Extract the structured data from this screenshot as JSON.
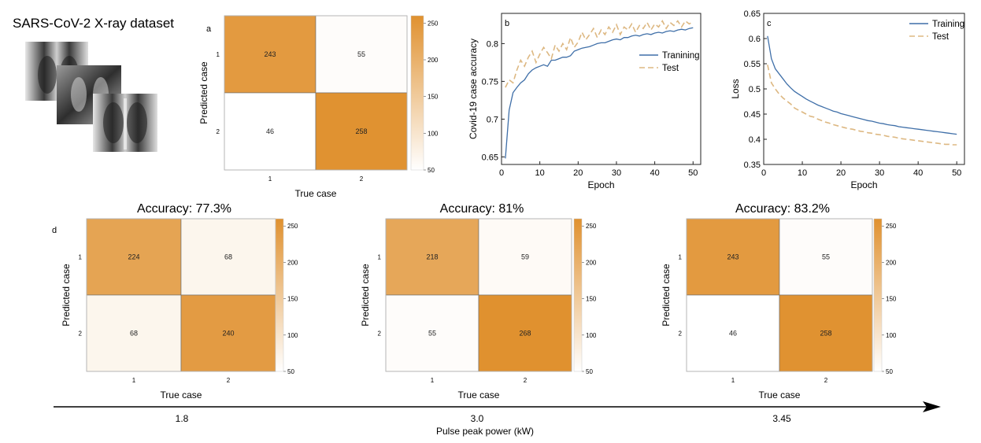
{
  "dataset_title": "SARS-CoV-2 X-ray dataset",
  "colors": {
    "high": "#e0912f",
    "low": "#ffffff",
    "training": "#3f6fa8",
    "test": "#ddb882",
    "border": "#555555"
  },
  "chart_data": [
    {
      "id": "a",
      "type": "heatmap",
      "panel_label": "a",
      "title": "",
      "row_labels": [
        "1",
        "2"
      ],
      "col_labels": [
        "1",
        "2"
      ],
      "values": [
        [
          243,
          55
        ],
        [
          46,
          258
        ]
      ],
      "xlabel": "True case",
      "ylabel": "Predicted case",
      "colorbar_range": [
        50,
        260
      ],
      "colorbar_ticks": [
        50,
        100,
        150,
        200,
        250
      ]
    },
    {
      "id": "b",
      "type": "line",
      "panel_label": "b",
      "xlabel": "Epoch",
      "ylabel": "Covid-19 case accuracy",
      "xlim": [
        0,
        52
      ],
      "ylim": [
        0.64,
        0.84
      ],
      "xticks": [
        0,
        10,
        20,
        30,
        40,
        50
      ],
      "yticks": [
        0.65,
        0.7,
        0.75,
        0.8
      ],
      "legend_position": "middle-right",
      "series": [
        {
          "name": "Tranining",
          "style": "solid",
          "x": [
            1,
            2,
            3,
            4,
            5,
            6,
            7,
            8,
            9,
            10,
            11,
            12,
            13,
            14,
            15,
            16,
            17,
            18,
            19,
            20,
            21,
            22,
            23,
            24,
            25,
            26,
            27,
            28,
            29,
            30,
            31,
            32,
            33,
            34,
            35,
            36,
            37,
            38,
            39,
            40,
            41,
            42,
            43,
            44,
            45,
            46,
            47,
            48,
            49,
            50
          ],
          "y": [
            0.648,
            0.712,
            0.735,
            0.742,
            0.748,
            0.752,
            0.76,
            0.765,
            0.768,
            0.77,
            0.772,
            0.77,
            0.778,
            0.778,
            0.78,
            0.782,
            0.782,
            0.784,
            0.79,
            0.792,
            0.794,
            0.795,
            0.796,
            0.798,
            0.8,
            0.801,
            0.801,
            0.803,
            0.805,
            0.806,
            0.805,
            0.808,
            0.808,
            0.81,
            0.811,
            0.81,
            0.812,
            0.813,
            0.812,
            0.814,
            0.815,
            0.814,
            0.816,
            0.817,
            0.816,
            0.818,
            0.819,
            0.818,
            0.82,
            0.821
          ]
        },
        {
          "name": "Test",
          "style": "dashed",
          "x": [
            1,
            2,
            3,
            4,
            5,
            6,
            7,
            8,
            9,
            10,
            11,
            12,
            13,
            14,
            15,
            16,
            17,
            18,
            19,
            20,
            21,
            22,
            23,
            24,
            25,
            26,
            27,
            28,
            29,
            30,
            31,
            32,
            33,
            34,
            35,
            36,
            37,
            38,
            39,
            40,
            41,
            42,
            43,
            44,
            45,
            46,
            47,
            48,
            49,
            50
          ],
          "y": [
            0.742,
            0.752,
            0.748,
            0.765,
            0.778,
            0.77,
            0.782,
            0.79,
            0.775,
            0.786,
            0.795,
            0.788,
            0.78,
            0.798,
            0.79,
            0.8,
            0.792,
            0.808,
            0.795,
            0.802,
            0.815,
            0.805,
            0.812,
            0.82,
            0.808,
            0.818,
            0.812,
            0.822,
            0.815,
            0.825,
            0.812,
            0.822,
            0.818,
            0.826,
            0.815,
            0.824,
            0.82,
            0.828,
            0.818,
            0.826,
            0.822,
            0.83,
            0.82,
            0.828,
            0.824,
            0.83,
            0.822,
            0.83,
            0.826,
            0.829
          ]
        }
      ]
    },
    {
      "id": "c",
      "type": "line",
      "panel_label": "c",
      "xlabel": "Epoch",
      "ylabel": "Loss",
      "xlim": [
        0,
        52
      ],
      "ylim": [
        0.35,
        0.65
      ],
      "xticks": [
        0,
        10,
        20,
        30,
        40,
        50
      ],
      "yticks": [
        0.35,
        0.4,
        0.45,
        0.5,
        0.55,
        0.6,
        0.65
      ],
      "legend_position": "top-right",
      "series": [
        {
          "name": "Training",
          "style": "solid",
          "x": [
            1,
            2,
            3,
            4,
            5,
            6,
            7,
            8,
            9,
            10,
            11,
            12,
            13,
            14,
            15,
            16,
            17,
            18,
            19,
            20,
            21,
            22,
            23,
            24,
            25,
            26,
            27,
            28,
            29,
            30,
            31,
            32,
            33,
            34,
            35,
            36,
            37,
            38,
            39,
            40,
            41,
            42,
            43,
            44,
            45,
            46,
            47,
            48,
            49,
            50
          ],
          "y": [
            0.605,
            0.56,
            0.54,
            0.53,
            0.52,
            0.51,
            0.502,
            0.495,
            0.49,
            0.485,
            0.48,
            0.476,
            0.472,
            0.468,
            0.465,
            0.462,
            0.459,
            0.456,
            0.454,
            0.451,
            0.449,
            0.447,
            0.445,
            0.443,
            0.441,
            0.439,
            0.437,
            0.436,
            0.434,
            0.432,
            0.431,
            0.429,
            0.428,
            0.427,
            0.425,
            0.424,
            0.423,
            0.422,
            0.421,
            0.42,
            0.419,
            0.418,
            0.417,
            0.416,
            0.415,
            0.414,
            0.413,
            0.412,
            0.411,
            0.41
          ]
        },
        {
          "name": "Test",
          "style": "dashed",
          "x": [
            1,
            2,
            3,
            4,
            5,
            6,
            7,
            8,
            9,
            10,
            11,
            12,
            13,
            14,
            15,
            16,
            17,
            18,
            19,
            20,
            21,
            22,
            23,
            24,
            25,
            26,
            27,
            28,
            29,
            30,
            31,
            32,
            33,
            34,
            35,
            36,
            37,
            38,
            39,
            40,
            41,
            42,
            43,
            44,
            45,
            46,
            47,
            48,
            49,
            50
          ],
          "y": [
            0.548,
            0.512,
            0.5,
            0.49,
            0.482,
            0.476,
            0.47,
            0.462,
            0.458,
            0.454,
            0.45,
            0.446,
            0.444,
            0.44,
            0.437,
            0.434,
            0.432,
            0.429,
            0.427,
            0.425,
            0.423,
            0.421,
            0.42,
            0.418,
            0.416,
            0.415,
            0.413,
            0.412,
            0.41,
            0.409,
            0.408,
            0.406,
            0.405,
            0.404,
            0.402,
            0.401,
            0.4,
            0.399,
            0.398,
            0.397,
            0.396,
            0.395,
            0.394,
            0.393,
            0.392,
            0.391,
            0.39,
            0.39,
            0.389,
            0.389
          ]
        }
      ]
    },
    {
      "id": "d1",
      "type": "heatmap",
      "panel_label": "d",
      "title": "Accuracy: 77.3%",
      "row_labels": [
        "1",
        "2"
      ],
      "col_labels": [
        "1",
        "2"
      ],
      "values": [
        [
          224,
          68
        ],
        [
          68,
          240
        ]
      ],
      "xlabel": "True case",
      "ylabel": "Predicted case",
      "colorbar_range": [
        50,
        260
      ],
      "colorbar_ticks": [
        50,
        100,
        150,
        200,
        250
      ]
    },
    {
      "id": "d2",
      "type": "heatmap",
      "panel_label": "",
      "title": "Accuracy: 81%",
      "row_labels": [
        "1",
        "2"
      ],
      "col_labels": [
        "1",
        "2"
      ],
      "values": [
        [
          218,
          59
        ],
        [
          55,
          268
        ]
      ],
      "xlabel": "True case",
      "ylabel": "Predicted case",
      "colorbar_range": [
        50,
        260
      ],
      "colorbar_ticks": [
        50,
        100,
        150,
        200,
        250
      ]
    },
    {
      "id": "d3",
      "type": "heatmap",
      "panel_label": "",
      "title": "Accuracy: 83.2%",
      "row_labels": [
        "1",
        "2"
      ],
      "col_labels": [
        "1",
        "2"
      ],
      "values": [
        [
          243,
          55
        ],
        [
          46,
          258
        ]
      ],
      "xlabel": "True case",
      "ylabel": "Predicted case",
      "colorbar_range": [
        50,
        260
      ],
      "colorbar_ticks": [
        50,
        100,
        150,
        200,
        250
      ]
    }
  ],
  "power_axis": {
    "label": "Pulse peak power (kW)",
    "ticks": [
      "1.8",
      "3.0",
      "3.45"
    ]
  }
}
